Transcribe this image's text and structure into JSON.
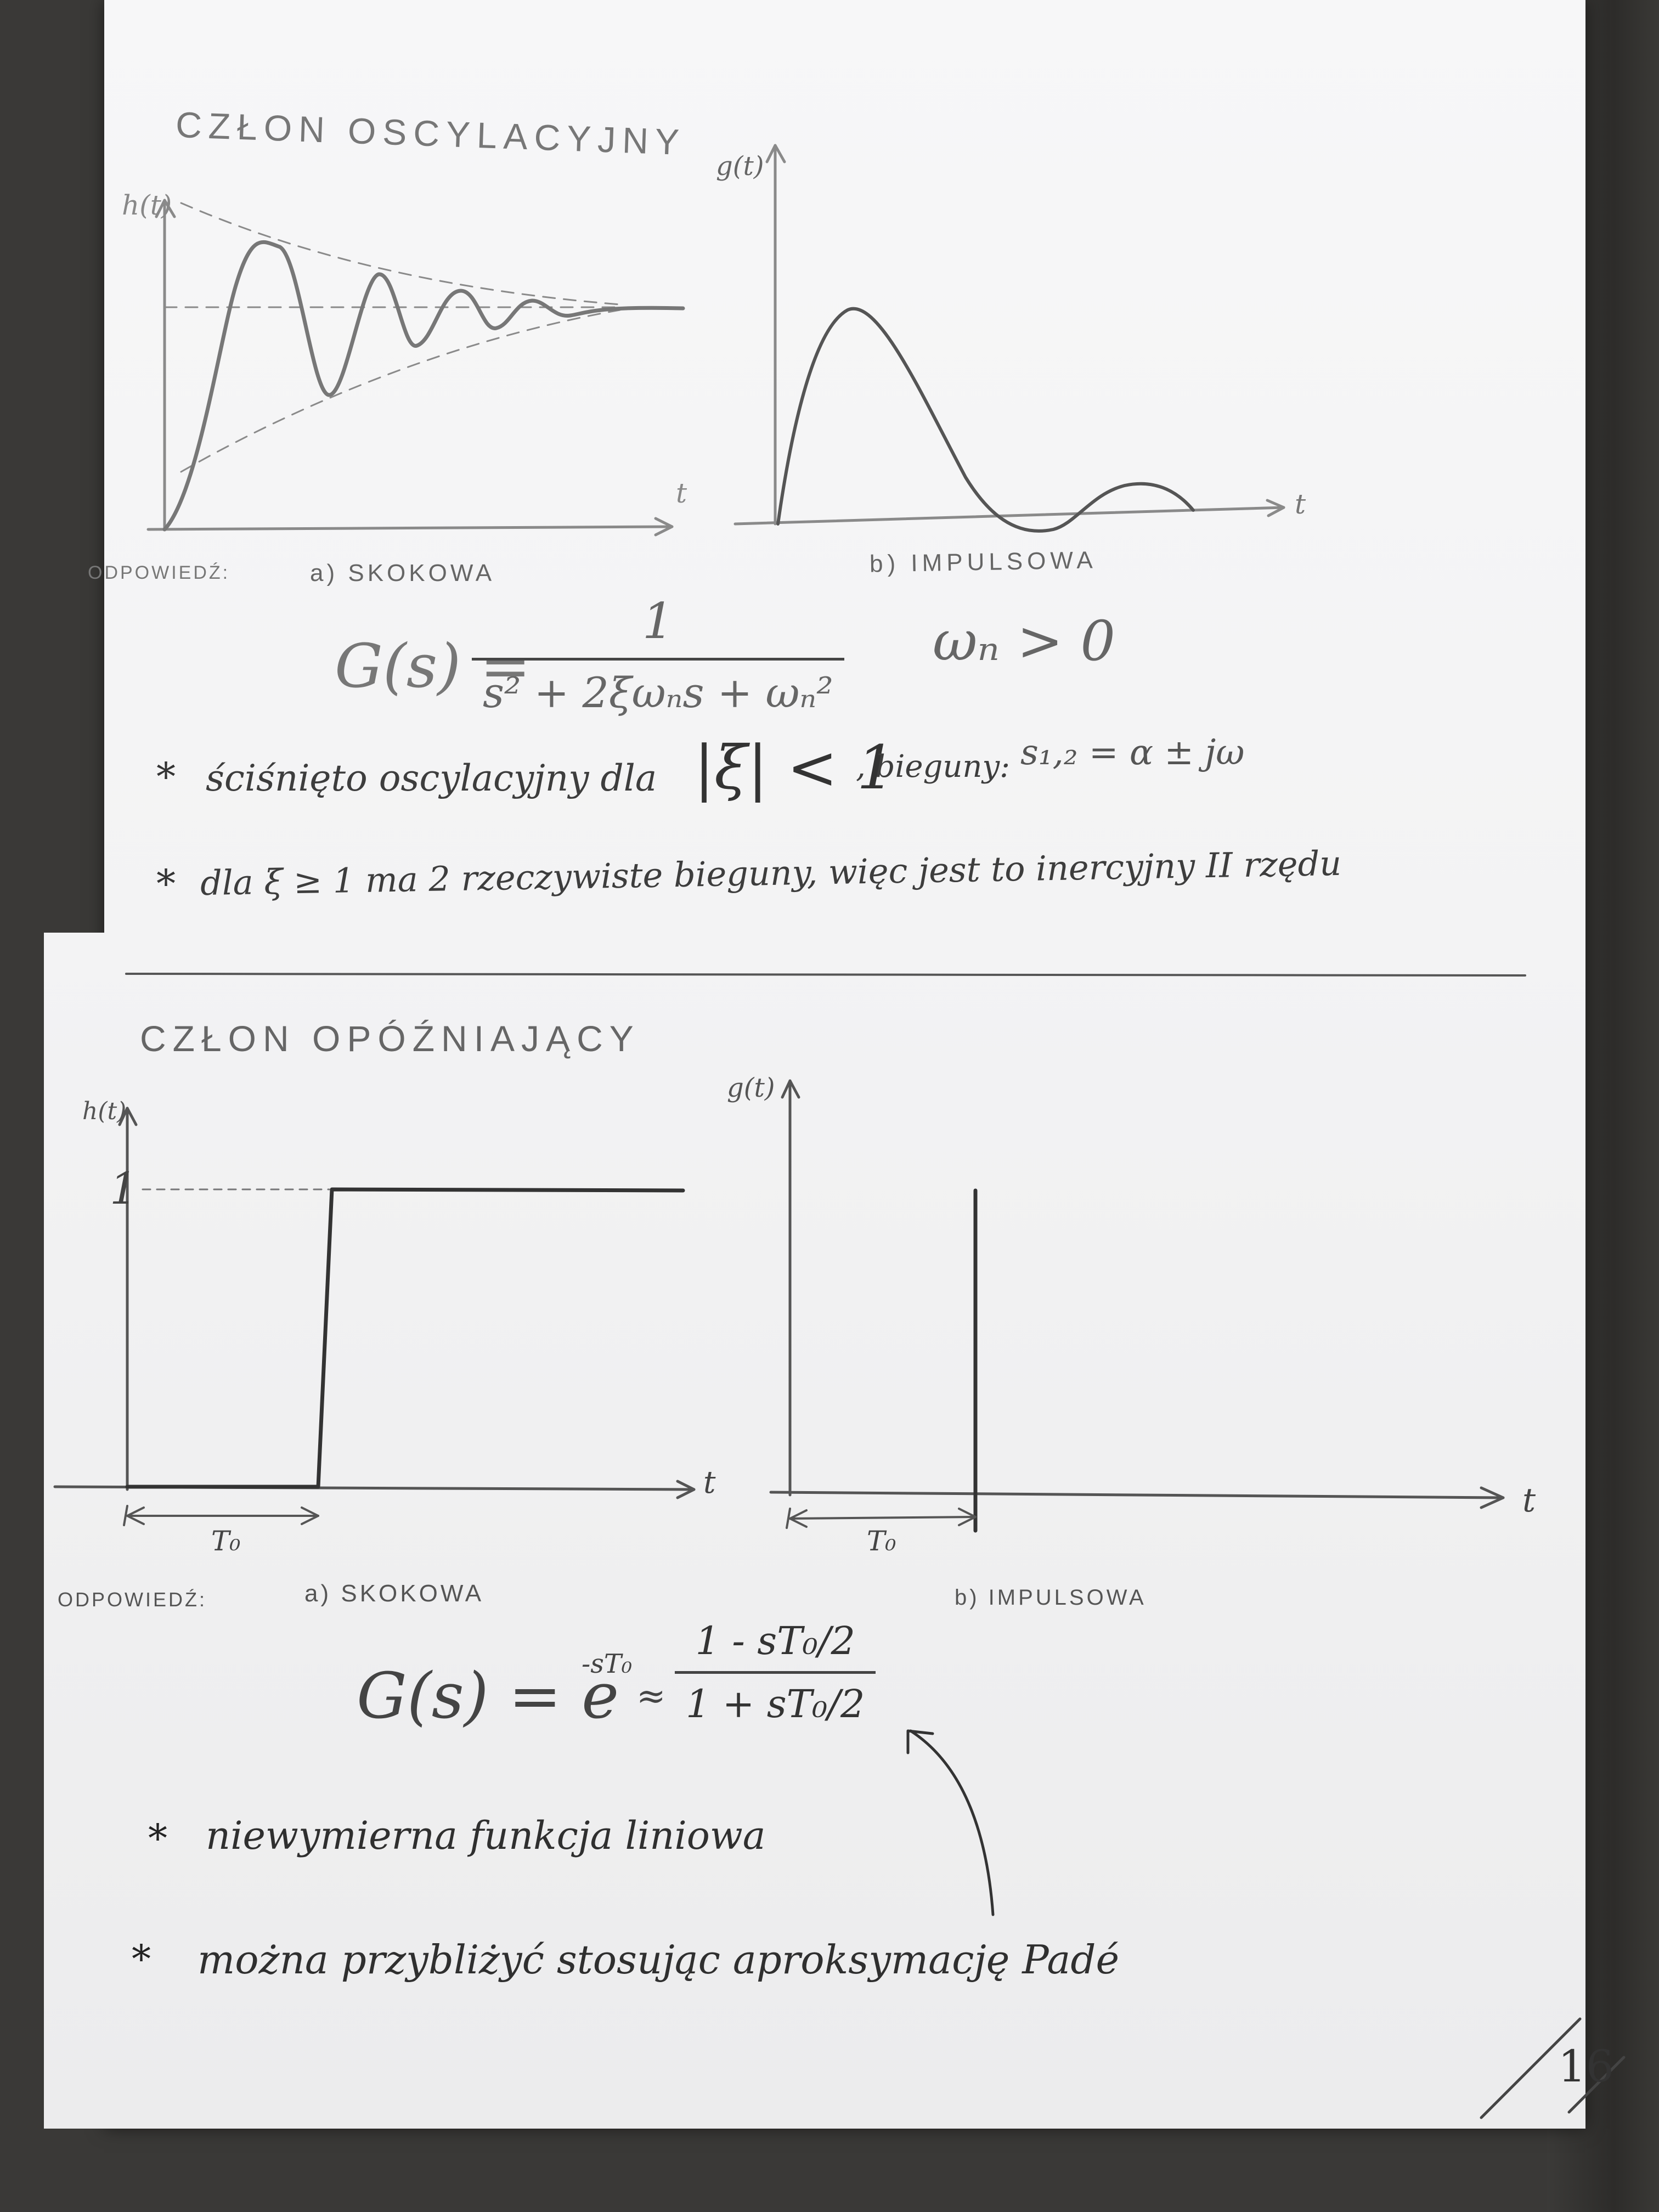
{
  "section1": {
    "title": "CZŁON OSCYLACYJNY",
    "step_axis_label": "h(t)",
    "impulse_axis_label": "g(t)",
    "time_label_a": "t",
    "time_label_b": "t",
    "response_label": "ODPOWIEDŹ:",
    "step_caption": "a) SKOKOWA",
    "impulse_caption": "b) IMPULSOWA",
    "transfer_lhs": "G(s) =",
    "transfer_num": "1",
    "transfer_den": "s² + 2ξωₙs + ωₙ²",
    "condition": "ωₙ > 0",
    "note1_text": "ściśnięto oscylacyjny dla",
    "note1_math": "|ξ| < 1",
    "note1_poles_label": ", bieguny:",
    "note1_poles": "s₁,₂ = α ± jω",
    "note2_text": "dla ξ ≥ 1 ma 2 rzeczywiste bieguny, więc jest to inercyjny II rzędu",
    "bullet": "*"
  },
  "section2": {
    "title": "CZŁON OPÓŹNIAJĄCY",
    "step_axis_label": "h(t)",
    "step_level": "1",
    "impulse_axis_label": "g(t)",
    "time_label_a": "t",
    "time_label_b": "t",
    "delay_label_a": "T₀",
    "delay_label_b": "T₀",
    "response_label": "ODPOWIEDŹ:",
    "step_caption": "a) SKOKOWA",
    "impulse_caption": "b) IMPULSOWA",
    "transfer_lhs": "G(s) = e",
    "transfer_exp": "-sT₀",
    "approx": "≈",
    "approx_num": "1 - sT₀/2",
    "approx_den": "1 + sT₀/2",
    "note1_text": "niewymierna funkcja liniowa",
    "note2_text": "można przybliżyć stosując aproksymację Padé",
    "bullet": "*"
  },
  "page_number": "16"
}
